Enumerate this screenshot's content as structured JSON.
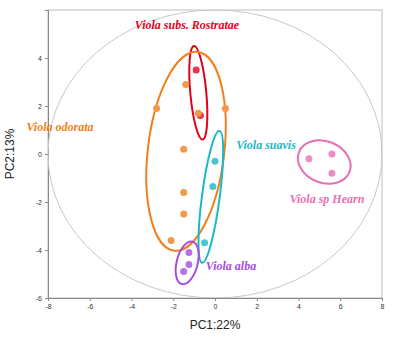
{
  "chart_data": {
    "type": "scatter",
    "x_label": "PC1:22%",
    "y_label": "PC2:13%",
    "xlim": [
      -8,
      8
    ],
    "ylim": [
      -6,
      6
    ],
    "xticks": [
      -8,
      -6,
      -4,
      -2,
      0,
      2,
      4,
      6,
      8
    ],
    "yticks": [
      -6,
      -4,
      -2,
      0,
      2,
      4
    ],
    "hotelling_ellipse": {
      "rx": 8,
      "ry": 6
    },
    "series": [
      {
        "name": "Viola subs. Rostratae",
        "color": "#e3001b",
        "marker": "circle",
        "x": [
          -0.9,
          -0.7
        ],
        "values": [
          3.5,
          1.6
        ]
      },
      {
        "name": "Viola odorata",
        "color": "#f07f1a",
        "marker": "circle",
        "x": [
          -1.4,
          0.5,
          -2.8,
          -1.5,
          -1.5,
          -1.5,
          -2.1,
          -0.8
        ],
        "values": [
          2.9,
          1.9,
          1.9,
          0.2,
          -1.6,
          -2.5,
          -3.6,
          1.7
        ]
      },
      {
        "name": "Viola suavis",
        "color": "#1cb8c4",
        "marker": "circle",
        "x": [
          0.0,
          -0.1,
          -0.5
        ],
        "values": [
          -0.3,
          -1.35,
          -3.7
        ]
      },
      {
        "name": "Viola alba",
        "color": "#a64de0",
        "marker": "circle",
        "x": [
          -1.25,
          -1.25,
          -1.5
        ],
        "values": [
          -4.1,
          -4.6,
          -4.9
        ]
      },
      {
        "name": "Viola sp Hearn",
        "color": "#e86fb5",
        "marker": "circle",
        "x": [
          4.5,
          5.6,
          5.6
        ],
        "values": [
          -0.2,
          0.0,
          -0.8
        ]
      }
    ]
  }
}
